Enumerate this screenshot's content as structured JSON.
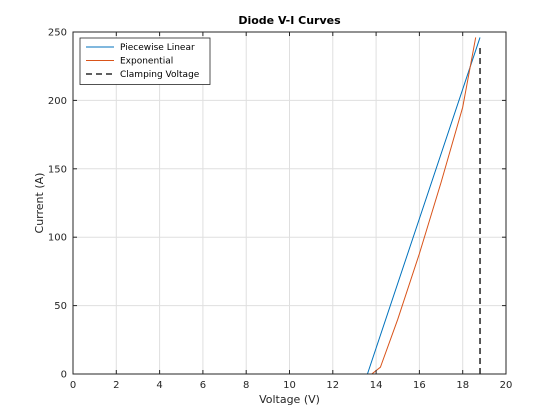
{
  "chart_data": {
    "type": "line",
    "title": "Diode V-I Curves",
    "xlabel": "Voltage (V)",
    "ylabel": "Current (A)",
    "xlim": [
      0,
      20
    ],
    "ylim": [
      0,
      250
    ],
    "xticks": [
      0,
      2,
      4,
      6,
      8,
      10,
      12,
      14,
      16,
      18,
      20
    ],
    "yticks": [
      0,
      50,
      100,
      150,
      200,
      250
    ],
    "grid": true,
    "legend_position": "top-left",
    "series": [
      {
        "name": "Piecewise Linear",
        "color": "#0072BD",
        "style": "solid",
        "points": [
          [
            0,
            0
          ],
          [
            13.6,
            0
          ],
          [
            18.8,
            246
          ]
        ]
      },
      {
        "name": "Exponential",
        "color": "#D95319",
        "style": "solid",
        "points": [
          [
            0,
            0
          ],
          [
            13.8,
            0
          ],
          [
            14.2,
            5
          ],
          [
            15.0,
            40
          ],
          [
            16.0,
            88
          ],
          [
            17.0,
            140
          ],
          [
            18.0,
            195
          ],
          [
            18.6,
            246
          ]
        ]
      },
      {
        "name": "Clamping Voltage",
        "color": "#000000",
        "style": "dashed",
        "points": [
          [
            18.8,
            0
          ],
          [
            18.8,
            241
          ]
        ]
      }
    ]
  }
}
